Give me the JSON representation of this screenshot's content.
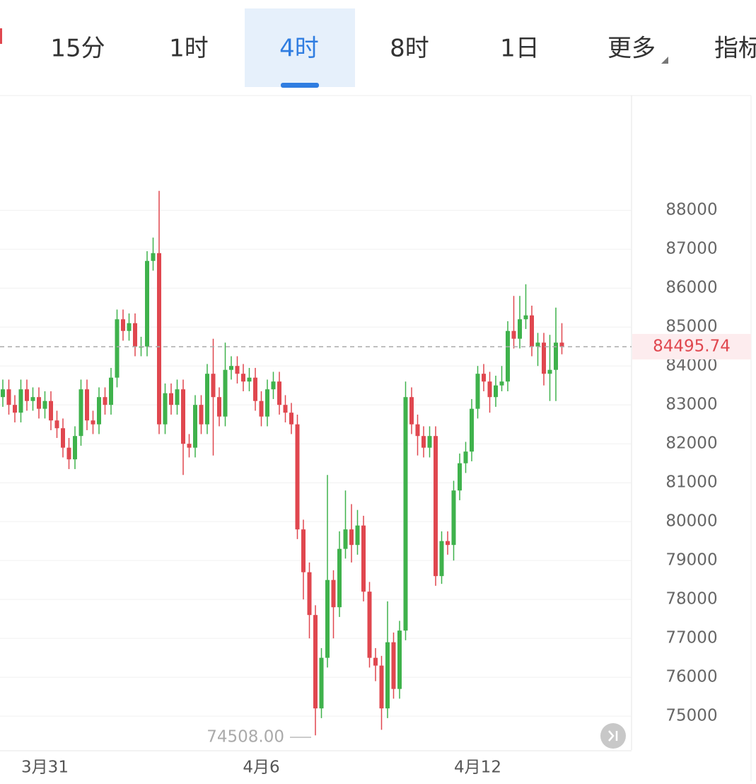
{
  "tabs": [
    "15分",
    "1时",
    "4时",
    "8时",
    "1日",
    "更多",
    "指标"
  ],
  "active_tab": "4时",
  "chart_data": {
    "type": "candlestick",
    "categories": [
      null,
      null,
      null,
      null,
      null,
      null,
      null,
      "3月31",
      null,
      null,
      null,
      null,
      null,
      null,
      null,
      null,
      null,
      null,
      null,
      null,
      null,
      null,
      null,
      null,
      null,
      null,
      null,
      null,
      null,
      null,
      null,
      null,
      null,
      null,
      null,
      null,
      null,
      null,
      null,
      null,
      null,
      null,
      null,
      "4月6",
      null,
      null,
      null,
      null,
      null,
      null,
      null,
      null,
      null,
      null,
      null,
      null,
      null,
      null,
      null,
      null,
      null,
      null,
      null,
      null,
      null,
      null,
      null,
      null,
      null,
      null,
      null,
      null,
      null,
      null,
      null,
      null,
      null,
      null,
      null,
      "4月12",
      null,
      null,
      null,
      null,
      null,
      null,
      null,
      null,
      null,
      null,
      null,
      null,
      null,
      null
    ],
    "open": [
      83200,
      83400,
      83000,
      82800,
      83400,
      83100,
      83200,
      82900,
      83100,
      82600,
      82400,
      81900,
      81600,
      82200,
      83400,
      82600,
      82500,
      83200,
      83000,
      83700,
      85200,
      84900,
      85100,
      84500,
      84500,
      86700,
      86900,
      82500,
      83300,
      83000,
      83400,
      82000,
      81900,
      83000,
      82500,
      83800,
      83200,
      82700,
      83900,
      84000,
      83800,
      83600,
      83700,
      83100,
      82700,
      83400,
      83600,
      83000,
      82800,
      82500,
      79800,
      78700,
      77600,
      75200,
      76500,
      78500,
      77800,
      79300,
      79800,
      79400,
      79900,
      78200,
      76500,
      76300,
      75200,
      76900,
      75700,
      77200,
      83200,
      82500,
      82200,
      81900,
      82200,
      78600,
      79500,
      79400,
      80800,
      81500,
      81800,
      82900,
      83800,
      83600,
      83200,
      83500,
      83600,
      84900,
      84700,
      85200,
      85300,
      84500,
      84600,
      83800,
      83900,
      84600
    ],
    "high": [
      83650,
      83650,
      83250,
      83650,
      83650,
      83450,
      83450,
      83350,
      83350,
      82850,
      82650,
      82150,
      82450,
      83650,
      83650,
      82850,
      83450,
      83450,
      83950,
      85450,
      85450,
      85350,
      85350,
      84750,
      86950,
      87300,
      88500,
      83550,
      83550,
      83650,
      83650,
      82250,
      83250,
      83250,
      84050,
      84700,
      83450,
      84600,
      84250,
      84250,
      84050,
      83950,
      83950,
      83350,
      83650,
      83850,
      83850,
      83250,
      83050,
      82750,
      80050,
      78950,
      77850,
      76750,
      81200,
      78750,
      79750,
      80800,
      80450,
      80300,
      80150,
      78450,
      76750,
      76550,
      77950,
      77150,
      77450,
      83600,
      83450,
      82750,
      82450,
      82450,
      82450,
      79750,
      79750,
      81050,
      81750,
      82050,
      83150,
      84000,
      84050,
      83850,
      83750,
      84000,
      85150,
      85800,
      85800,
      86100,
      85550,
      84850,
      84850,
      84800,
      85500,
      85100
    ],
    "low": [
      82950,
      82750,
      82550,
      82550,
      82850,
      82850,
      82650,
      82650,
      82350,
      82150,
      81650,
      81350,
      81350,
      81950,
      82350,
      82250,
      82250,
      82750,
      82750,
      83450,
      84650,
      84650,
      84250,
      84250,
      84250,
      86450,
      82250,
      82250,
      82750,
      82750,
      81200,
      81650,
      81650,
      82250,
      82250,
      81700,
      82450,
      82450,
      83650,
      83550,
      83350,
      83350,
      82850,
      82450,
      82450,
      83150,
      82750,
      82550,
      82250,
      79550,
      78000,
      77000,
      74508,
      74950,
      76250,
      77000,
      77550,
      79050,
      78950,
      79150,
      77950,
      76250,
      75900,
      74650,
      74950,
      75450,
      75450,
      76950,
      82250,
      81700,
      81650,
      81650,
      78350,
      78400,
      79150,
      79000,
      80550,
      81250,
      81550,
      82650,
      83350,
      82800,
      82950,
      83350,
      83350,
      84450,
      84450,
      84950,
      84250,
      84000,
      83500,
      83100,
      83100,
      84300
    ],
    "close": [
      83400,
      83000,
      82800,
      83400,
      83100,
      83200,
      82900,
      83100,
      82600,
      82400,
      81900,
      81600,
      82200,
      83400,
      82600,
      82500,
      83200,
      83000,
      83700,
      85200,
      84900,
      85100,
      84500,
      84500,
      86700,
      86900,
      82500,
      83300,
      83000,
      83400,
      82000,
      81900,
      83000,
      82500,
      83800,
      83200,
      82700,
      83900,
      84000,
      83800,
      83600,
      83700,
      83100,
      82700,
      83400,
      83600,
      83000,
      82800,
      82500,
      79800,
      78700,
      77600,
      75200,
      76500,
      78500,
      77800,
      79300,
      79800,
      79400,
      79900,
      78200,
      76500,
      76300,
      75200,
      76900,
      75700,
      77200,
      83200,
      82500,
      82200,
      81900,
      82200,
      78600,
      79500,
      79400,
      80800,
      81500,
      81800,
      82900,
      83800,
      83600,
      83200,
      83500,
      83600,
      84900,
      84700,
      85200,
      85300,
      84500,
      84600,
      83800,
      83900,
      84600,
      84495.74
    ],
    "up_color": "#3fb24c",
    "down_color": "#e0474f",
    "ylim": [
      74130,
      90950
    ],
    "yticks": [
      75000,
      76000,
      77000,
      78000,
      79000,
      80000,
      81000,
      82000,
      83000,
      84000,
      85000,
      86000,
      87000,
      88000
    ],
    "grid": true,
    "last_price": 84495.74,
    "low_marker": {
      "value": 74508,
      "label": "74508.00"
    }
  }
}
